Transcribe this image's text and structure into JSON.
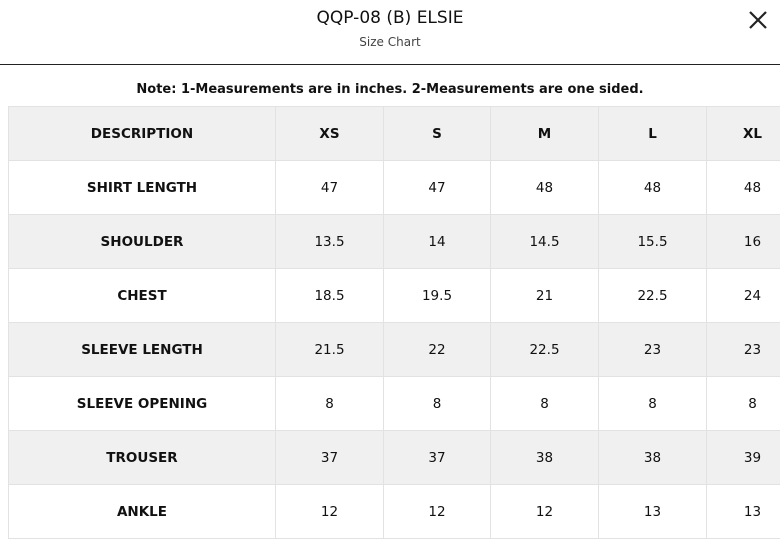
{
  "header": {
    "title": "QQP-08 (B) ELSIE",
    "subtitle": "Size Chart"
  },
  "note": "Note: 1-Measurements are in inches. 2-Measurements are one sided.",
  "table": {
    "columns": [
      "DESCRIPTION",
      "XS",
      "S",
      "M",
      "L",
      "XL"
    ],
    "rows": [
      [
        "SHIRT LENGTH",
        "47",
        "47",
        "48",
        "48",
        "48"
      ],
      [
        "SHOULDER",
        "13.5",
        "14",
        "14.5",
        "15.5",
        "16"
      ],
      [
        "CHEST",
        "18.5",
        "19.5",
        "21",
        "22.5",
        "24"
      ],
      [
        "SLEEVE LENGTH",
        "21.5",
        "22",
        "22.5",
        "23",
        "23"
      ],
      [
        "SLEEVE OPENING",
        "8",
        "8",
        "8",
        "8",
        "8"
      ],
      [
        "TROUSER",
        "37",
        "37",
        "38",
        "38",
        "39"
      ],
      [
        "ANKLE",
        "12",
        "12",
        "12",
        "13",
        "13"
      ]
    ]
  }
}
